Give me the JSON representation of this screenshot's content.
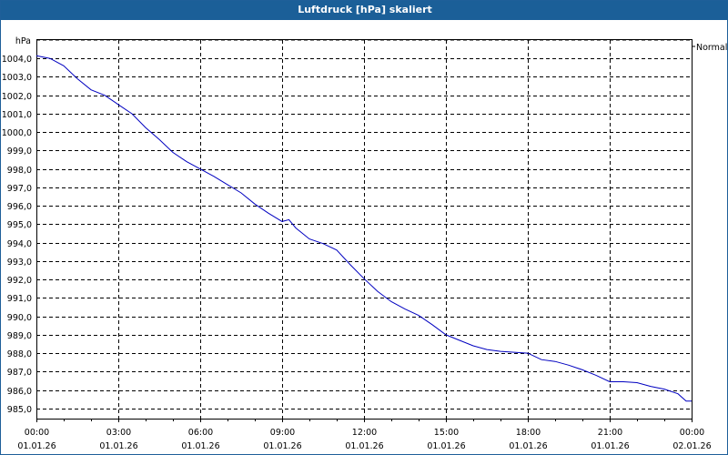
{
  "window": {
    "title": "Luftdruck [hPa] skaliert"
  },
  "chart_data": {
    "type": "line",
    "title": "Luftdruck [hPa] skaliert",
    "ylabel": "hPa",
    "xlabel": "",
    "ylim": [
      984.45,
      1005.0
    ],
    "grid": true,
    "legend": {
      "position": "right",
      "entries": [
        "Normal"
      ]
    },
    "yticks": [
      "1004,0",
      "1003,0",
      "1002,0",
      "1001,0",
      "1000,0",
      "999,0",
      "998,0",
      "997,0",
      "996,0",
      "995,0",
      "994,0",
      "993,0",
      "992,0",
      "991,0",
      "990,0",
      "989,0",
      "988,0",
      "987,0",
      "986,0",
      "985,0"
    ],
    "ytick_values": [
      1004,
      1003,
      1002,
      1001,
      1000,
      999,
      998,
      997,
      996,
      995,
      994,
      993,
      992,
      991,
      990,
      989,
      988,
      987,
      986,
      985
    ],
    "xticks": [
      {
        "time": "00:00",
        "date": "01.01.26"
      },
      {
        "time": "03:00",
        "date": "01.01.26"
      },
      {
        "time": "06:00",
        "date": "01.01.26"
      },
      {
        "time": "09:00",
        "date": "01.01.26"
      },
      {
        "time": "12:00",
        "date": "01.01.26"
      },
      {
        "time": "15:00",
        "date": "01.01.26"
      },
      {
        "time": "18:00",
        "date": "01.01.26"
      },
      {
        "time": "21:00",
        "date": "01.01.26"
      },
      {
        "time": "00:00",
        "date": "02.01.26"
      }
    ],
    "series": [
      {
        "name": "Normal",
        "color": "#0000c0",
        "x_hours": [
          0,
          0.5,
          1,
          1.5,
          2,
          2.5,
          3,
          3.5,
          4,
          4.5,
          5,
          5.5,
          6,
          6.5,
          7,
          7.5,
          8,
          8.5,
          9,
          9.25,
          9.5,
          10,
          10.5,
          11,
          11.5,
          12,
          12.5,
          13,
          13.5,
          14,
          14.5,
          15,
          15.5,
          16,
          16.5,
          17,
          17.5,
          18,
          18.5,
          19,
          19.5,
          20,
          20.5,
          21,
          21.5,
          22,
          22.5,
          23,
          23.5,
          23.8,
          24
        ],
        "values": [
          1004.15,
          1004.0,
          1003.6,
          1002.9,
          1002.3,
          1002.0,
          1001.5,
          1001.0,
          1000.25,
          999.6,
          998.9,
          998.4,
          998.0,
          997.6,
          997.15,
          996.7,
          996.1,
          995.6,
          995.15,
          995.25,
          994.8,
          994.2,
          993.95,
          993.6,
          992.8,
          992.05,
          991.35,
          990.8,
          990.4,
          990.05,
          989.55,
          989.0,
          988.7,
          988.4,
          988.2,
          988.1,
          988.05,
          988.0,
          987.65,
          987.55,
          987.35,
          987.1,
          986.8,
          986.45,
          986.45,
          986.4,
          986.2,
          986.05,
          985.8,
          985.4,
          985.4
        ]
      }
    ]
  }
}
